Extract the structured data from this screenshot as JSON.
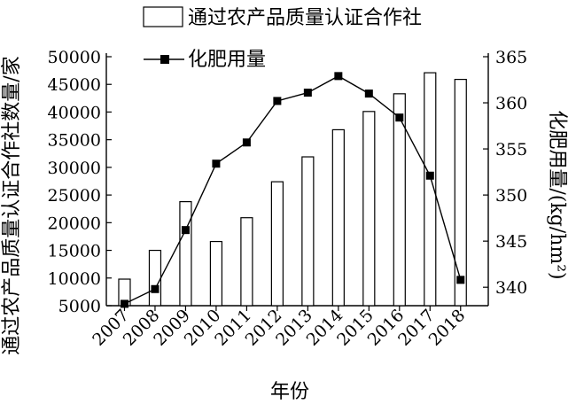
{
  "chart_data": {
    "type": "bar+line",
    "categories": [
      "2007",
      "2008",
      "2009",
      "2010",
      "2011",
      "2012",
      "2013",
      "2014",
      "2015",
      "2016",
      "2017",
      "2018"
    ],
    "series": [
      {
        "name": "通过农产品质量认证合作社",
        "type": "bar",
        "axis": "left",
        "values": [
          9800,
          15000,
          23800,
          16600,
          20900,
          27400,
          31900,
          36800,
          40100,
          43300,
          47100,
          45900
        ]
      },
      {
        "name": "化肥用量",
        "type": "line",
        "axis": "right",
        "values": [
          338.2,
          339.8,
          346.2,
          353.4,
          355.7,
          360.2,
          361.1,
          362.9,
          361.0,
          358.4,
          352.1,
          340.8
        ]
      }
    ],
    "xlabel": "年份",
    "ylabel_left": "通过农产品质量认证合作社数量/家",
    "ylabel_right": "化肥用量/(kg/hm²)",
    "ylim_left": [
      5000,
      50000
    ],
    "ylim_right": [
      338,
      365
    ],
    "yticks_left": [
      "5000",
      "10000",
      "15000",
      "20000",
      "25000",
      "30000",
      "35000",
      "40000",
      "45000",
      "50000"
    ],
    "yticks_right": [
      "340",
      "345",
      "350",
      "355",
      "360",
      "365"
    ],
    "grid": false,
    "legend_position": "top"
  }
}
